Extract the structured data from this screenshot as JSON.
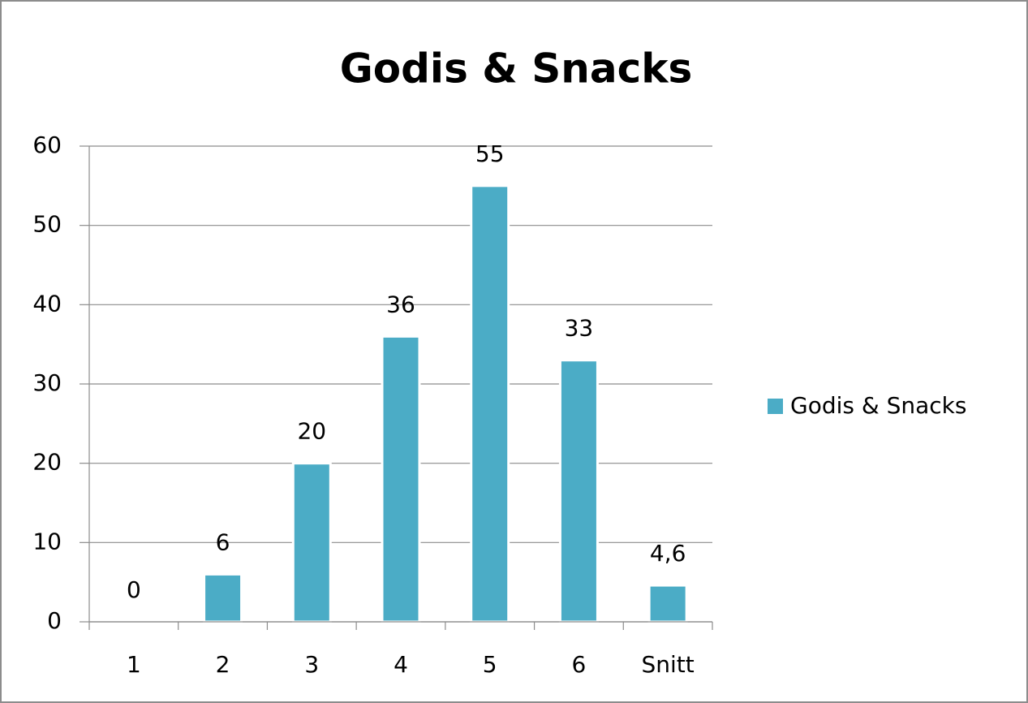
{
  "chart_data": {
    "type": "bar",
    "title": "Godis & Snacks",
    "categories": [
      "1",
      "2",
      "3",
      "4",
      "5",
      "6",
      "Snitt"
    ],
    "series": [
      {
        "name": "Godis & Snacks",
        "color": "#4bacc6",
        "values": [
          0,
          6,
          20,
          36,
          55,
          33,
          4.6
        ],
        "value_labels": [
          "0",
          "6",
          "20",
          "36",
          "55",
          "33",
          "4,6"
        ]
      }
    ],
    "ylim": [
      0,
      60
    ],
    "yticks": [
      0,
      10,
      20,
      30,
      40,
      50,
      60
    ],
    "grid": true,
    "legend": "right"
  }
}
